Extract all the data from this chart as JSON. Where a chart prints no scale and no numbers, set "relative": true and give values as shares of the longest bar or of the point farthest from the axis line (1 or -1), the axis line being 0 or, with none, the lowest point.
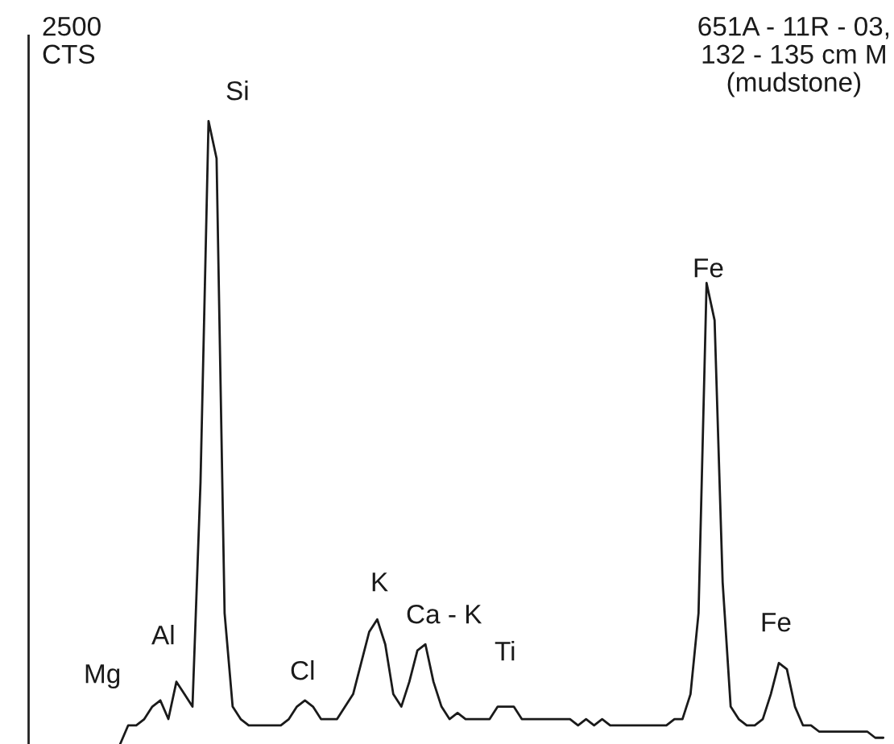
{
  "chart_data": {
    "type": "line",
    "relative": true,
    "color": "#1a1a1a",
    "categories": [
      null,
      null,
      null,
      null,
      null,
      null,
      null,
      null,
      null,
      null,
      null,
      null,
      null,
      null,
      null,
      null,
      null,
      null,
      null,
      null,
      null,
      null,
      null,
      null,
      null,
      null,
      null,
      null,
      null,
      null,
      null,
      null,
      null,
      null,
      null,
      null,
      null,
      null,
      null,
      null,
      null,
      null,
      null,
      null,
      null,
      null,
      null,
      null,
      null,
      null,
      null,
      null,
      null,
      null,
      null,
      null,
      null,
      null,
      null,
      null,
      null,
      null,
      null,
      null,
      null,
      null,
      null,
      null,
      null,
      null,
      null,
      null,
      null,
      null,
      null,
      null,
      null,
      null,
      null,
      null,
      null,
      null,
      null,
      null,
      null,
      null,
      null,
      null,
      null,
      null,
      null,
      null,
      null,
      null,
      null,
      null
    ],
    "values": [
      0.0,
      0.03,
      0.03,
      0.04,
      0.06,
      0.07,
      0.04,
      0.1,
      0.08,
      0.06,
      0.42,
      1.0,
      0.94,
      0.21,
      0.06,
      0.04,
      0.03,
      0.03,
      0.03,
      0.03,
      0.03,
      0.04,
      0.06,
      0.07,
      0.06,
      0.04,
      0.04,
      0.04,
      0.06,
      0.08,
      0.13,
      0.18,
      0.2,
      0.16,
      0.08,
      0.06,
      0.1,
      0.15,
      0.16,
      0.1,
      0.06,
      0.04,
      0.05,
      0.04,
      0.04,
      0.04,
      0.04,
      0.06,
      0.06,
      0.06,
      0.04,
      0.04,
      0.04,
      0.04,
      0.04,
      0.04,
      0.04,
      0.03,
      0.04,
      0.03,
      0.04,
      0.03,
      0.03,
      0.03,
      0.03,
      0.03,
      0.03,
      0.03,
      0.03,
      0.04,
      0.04,
      0.08,
      0.21,
      0.74,
      0.68,
      0.26,
      0.06,
      0.04,
      0.03,
      0.03,
      0.04,
      0.08,
      0.13,
      0.12,
      0.06,
      0.03,
      0.03,
      0.02,
      0.02,
      0.02,
      0.02,
      0.02,
      0.02,
      0.02,
      0.01,
      0.01
    ],
    "annotations": [
      "2500\nCTS",
      "651A - 11R - 03,\n132 - 135 cm M\n(mudstone)",
      "Si",
      "Mg",
      "Al",
      "Cl",
      "K",
      "Ca - K",
      "Ti",
      "Fe",
      "Fe"
    ],
    "grid": false,
    "legend": false
  }
}
